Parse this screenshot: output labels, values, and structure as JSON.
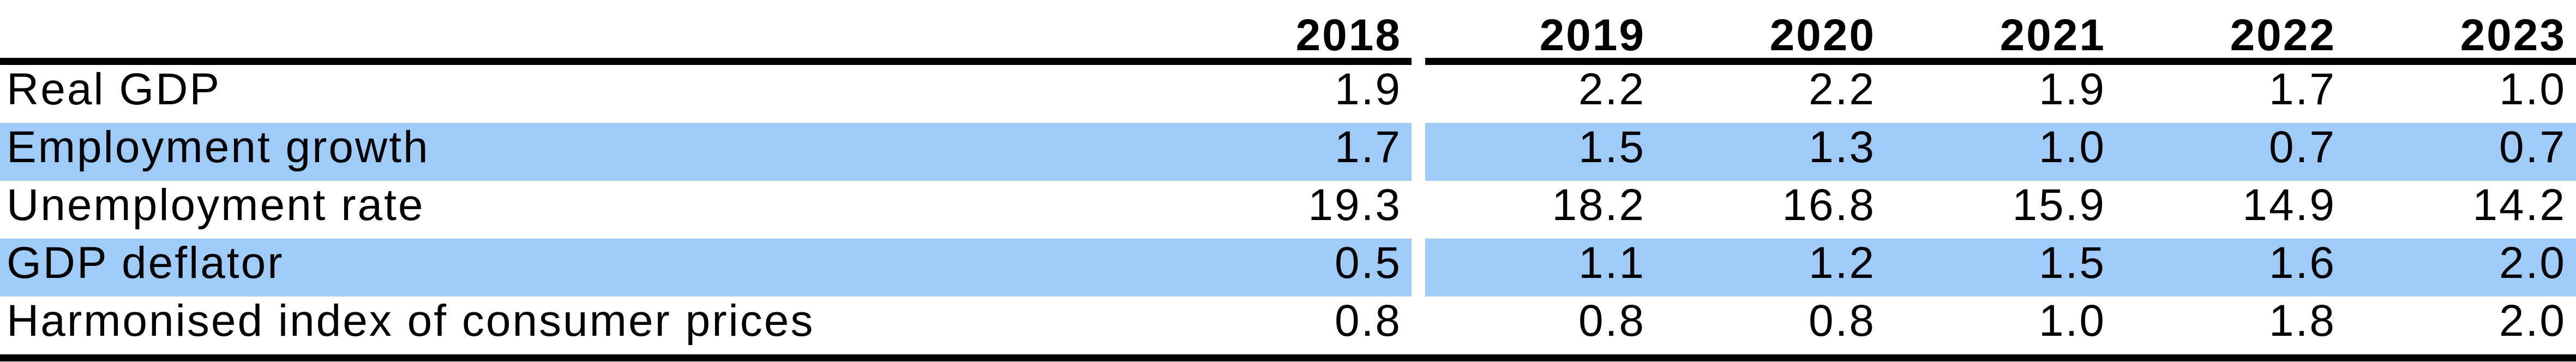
{
  "table": {
    "columns": [
      "2018",
      "2019",
      "2020",
      "2021",
      "2022",
      "2023"
    ],
    "rows": [
      {
        "label": "Real GDP",
        "values": [
          "1.9",
          "2.2",
          "2.2",
          "1.9",
          "1.7",
          "1.0"
        ],
        "highlighted": false
      },
      {
        "label": "Employment growth",
        "values": [
          "1.7",
          "1.5",
          "1.3",
          "1.0",
          "0.7",
          "0.7"
        ],
        "highlighted": true
      },
      {
        "label": "Unemployment rate",
        "values": [
          "19.3",
          "18.2",
          "16.8",
          "15.9",
          "14.9",
          "14.2"
        ],
        "highlighted": false
      },
      {
        "label": "GDP deflator",
        "values": [
          "0.5",
          "1.1",
          "1.2",
          "1.5",
          "1.6",
          "2.0"
        ],
        "highlighted": true
      },
      {
        "label": "Harmonised index of consumer prices",
        "values": [
          "0.8",
          "0.8",
          "0.8",
          "1.0",
          "1.8",
          "2.0"
        ],
        "highlighted": false
      }
    ],
    "colors": {
      "highlight": "#9FCBF8",
      "rule": "#000000",
      "text": "#000000",
      "background": "#FFFFFF"
    }
  },
  "chart_data": {
    "type": "table",
    "categories": [
      "2018",
      "2019",
      "2020",
      "2021",
      "2022",
      "2023"
    ],
    "series": [
      {
        "name": "Real GDP",
        "values": [
          1.9,
          2.2,
          2.2,
          1.9,
          1.7,
          1.0
        ]
      },
      {
        "name": "Employment growth",
        "values": [
          1.7,
          1.5,
          1.3,
          1.0,
          0.7,
          0.7
        ]
      },
      {
        "name": "Unemployment rate",
        "values": [
          19.3,
          18.2,
          16.8,
          15.9,
          14.9,
          14.2
        ]
      },
      {
        "name": "GDP deflator",
        "values": [
          0.5,
          1.1,
          1.2,
          1.5,
          1.6,
          2.0
        ]
      },
      {
        "name": "Harmonised index of consumer prices",
        "values": [
          0.8,
          0.8,
          0.8,
          1.0,
          1.8,
          2.0
        ]
      }
    ]
  }
}
